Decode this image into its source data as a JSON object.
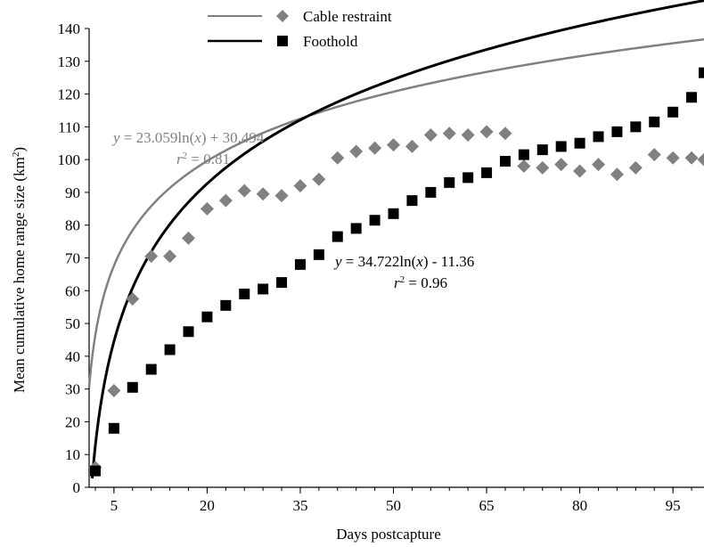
{
  "chart_data": {
    "type": "scatter",
    "title": "",
    "xlabel": "Days postcapture",
    "ylabel": "Mean cumulative home range size (km²)",
    "ylabel_parts": {
      "main": "Mean cumulative  home range size  (km",
      "sup": "2",
      "close": ")"
    },
    "xlim": [
      1,
      100
    ],
    "ylim": [
      0,
      140
    ],
    "x_ticks": [
      5,
      20,
      35,
      50,
      65,
      80,
      95
    ],
    "y_ticks": [
      0,
      10,
      20,
      30,
      40,
      50,
      60,
      70,
      80,
      90,
      100,
      110,
      120,
      130,
      140
    ],
    "grid": false,
    "legend_position": "top-center",
    "series": [
      {
        "name": "Cable restraint",
        "marker": "diamond",
        "color": "#808080",
        "x": [
          2,
          5,
          8,
          11,
          14,
          17,
          20,
          23,
          26,
          29,
          32,
          35,
          38,
          41,
          44,
          47,
          50,
          53,
          56,
          59,
          62,
          65,
          68,
          71,
          74,
          77,
          80,
          83,
          86,
          89,
          92,
          95,
          98,
          100
        ],
        "y": [
          6,
          29.5,
          57.5,
          70.5,
          70.5,
          76,
          85,
          87.5,
          90.5,
          89.5,
          89,
          92,
          94,
          100.5,
          102.5,
          103.5,
          104.5,
          104,
          107.5,
          108,
          107.5,
          108.5,
          108,
          98,
          97.5,
          98.5,
          96.5,
          98.5,
          95.5,
          97.5,
          101.5,
          100.5,
          100.5,
          100
        ],
        "fit": {
          "a": 23.059,
          "b": 30.494,
          "color": "#808080"
        }
      },
      {
        "name": "Foothold",
        "marker": "square",
        "color": "#000000",
        "x": [
          2,
          5,
          8,
          11,
          14,
          17,
          20,
          23,
          26,
          29,
          32,
          35,
          38,
          41,
          44,
          47,
          50,
          53,
          56,
          59,
          62,
          65,
          68,
          71,
          74,
          77,
          80,
          83,
          86,
          89,
          92,
          95,
          98,
          100
        ],
        "y": [
          5,
          18,
          30.5,
          36,
          42,
          47.5,
          52,
          55.5,
          59,
          60.5,
          62.5,
          68,
          71,
          76.5,
          79,
          81.5,
          83.5,
          87.5,
          90,
          93,
          94.5,
          96,
          99.5,
          101.5,
          103,
          104,
          105,
          107,
          108.5,
          110,
          111.5,
          114.5,
          119,
          126.5
        ],
        "fit": {
          "a": 34.722,
          "b": -11.36,
          "color": "#000000"
        }
      }
    ],
    "annotations": [
      {
        "text": "y = 23.059ln(x) + 30.494",
        "series": "Cable restraint"
      },
      {
        "text": "r² = 0.81",
        "series": "Cable restraint"
      },
      {
        "text": "y = 34.722ln(x)  - 11.36",
        "series": "Foothold"
      },
      {
        "text": "r² = 0.96",
        "series": "Foothold"
      }
    ]
  },
  "legend": {
    "cable": "Cable restraint",
    "foothold": "Foothold"
  },
  "equations": {
    "cable": {
      "y_var": "y",
      "mid": " = 23.059ln(",
      "x_var": "x",
      "tail": ") + 30.494",
      "r_var": "r",
      "r_sup": "2",
      "r_tail": " = 0.81"
    },
    "foothold": {
      "y_var": "y",
      "mid": " = 34.722ln(",
      "x_var": "x",
      "tail": ")  - 11.36",
      "r_var": "r",
      "r_sup": "2",
      "r_tail": " = 0.96"
    }
  },
  "colors": {
    "cable": "#808080",
    "foothold": "#000000",
    "background": "#ffffff"
  }
}
